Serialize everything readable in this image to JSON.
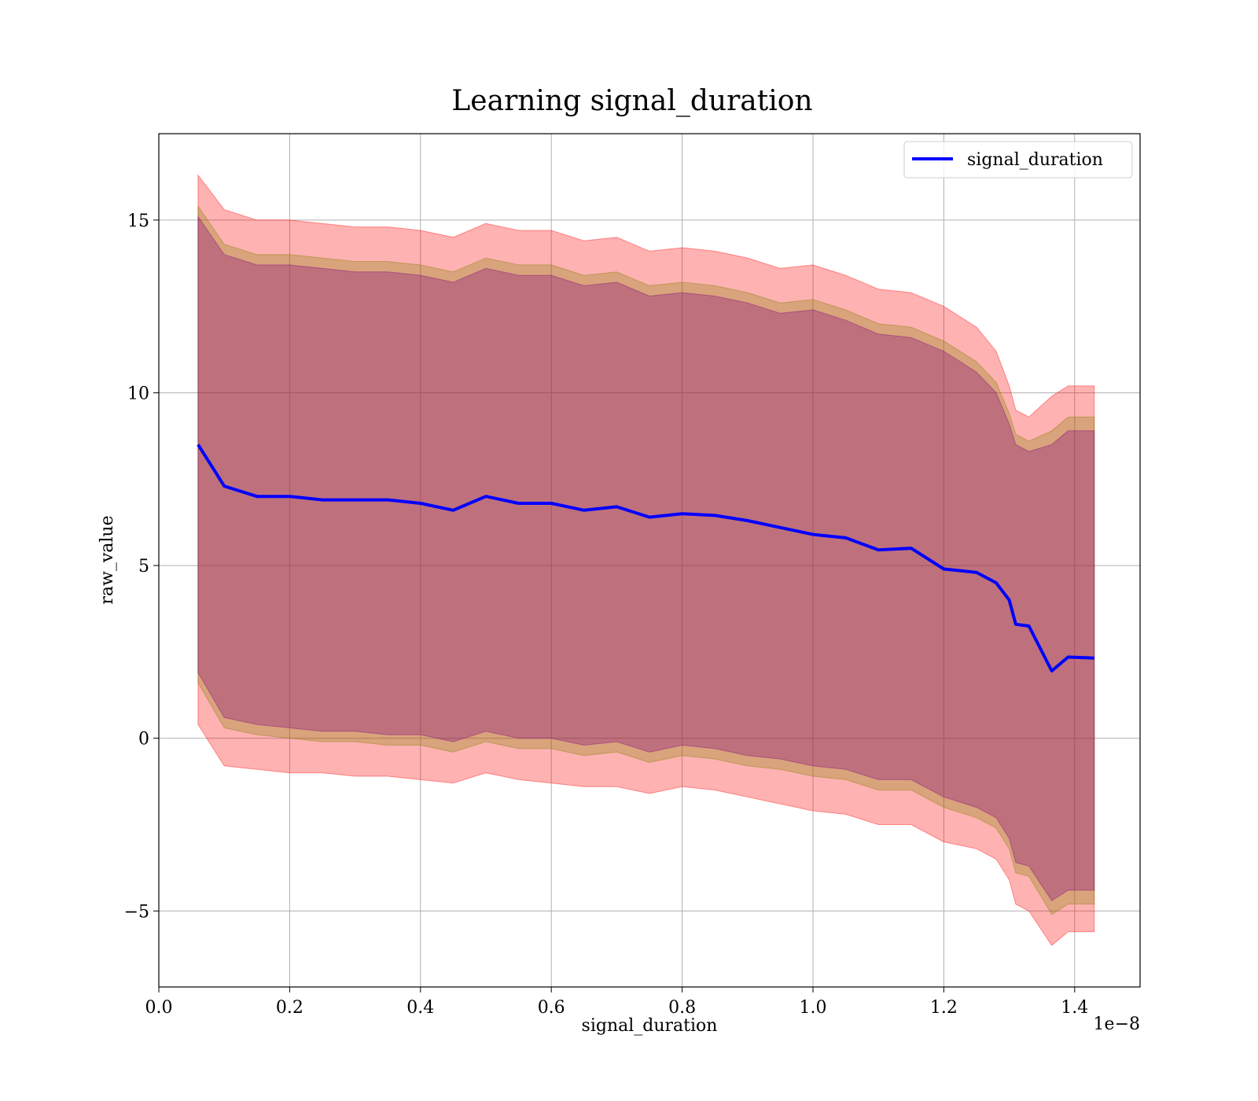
{
  "chart_data": {
    "type": "area",
    "title": "Learning signal_duration",
    "xlabel": "signal_duration",
    "ylabel": "raw_value",
    "x_offset_text": "1e−8",
    "x_scale": 1e-08,
    "xlim": [
      0.0,
      1.5
    ],
    "ylim": [
      -7.2,
      17.5
    ],
    "x_ticks": [
      0.0,
      0.2,
      0.4,
      0.6,
      0.8,
      1.0,
      1.2,
      1.4
    ],
    "x_tick_labels": [
      "0.0",
      "0.2",
      "0.4",
      "0.6",
      "0.8",
      "1.0",
      "1.2",
      "1.4"
    ],
    "y_ticks": [
      -5,
      0,
      5,
      10,
      15
    ],
    "y_tick_labels": [
      "−5",
      "0",
      "5",
      "10",
      "15"
    ],
    "grid": true,
    "legend": {
      "position": "top-right",
      "entries": [
        "signal_duration"
      ]
    },
    "x": [
      0.06,
      0.1,
      0.15,
      0.2,
      0.25,
      0.3,
      0.35,
      0.4,
      0.45,
      0.5,
      0.55,
      0.6,
      0.65,
      0.7,
      0.75,
      0.8,
      0.85,
      0.9,
      0.95,
      1.0,
      1.05,
      1.1,
      1.15,
      1.2,
      1.25,
      1.28,
      1.3,
      1.31,
      1.33,
      1.365,
      1.39,
      1.43
    ],
    "series": [
      {
        "name": "signal_duration",
        "color": "#0000ff",
        "values": [
          8.5,
          7.3,
          7.0,
          7.0,
          6.9,
          6.9,
          6.9,
          6.8,
          6.6,
          7.0,
          6.8,
          6.8,
          6.6,
          6.7,
          6.4,
          6.5,
          6.45,
          6.3,
          6.1,
          5.9,
          5.8,
          5.45,
          5.5,
          4.9,
          4.8,
          4.5,
          4.0,
          3.3,
          3.25,
          1.95,
          2.35,
          2.32
        ]
      }
    ],
    "bands": [
      {
        "color": "#ff0000",
        "opacity": 0.3,
        "upper": [
          16.3,
          15.3,
          15.0,
          15.0,
          14.9,
          14.8,
          14.8,
          14.7,
          14.5,
          14.9,
          14.7,
          14.7,
          14.4,
          14.5,
          14.1,
          14.2,
          14.1,
          13.9,
          13.6,
          13.7,
          13.4,
          13.0,
          12.9,
          12.5,
          11.9,
          11.2,
          10.2,
          9.5,
          9.3,
          9.9,
          10.2,
          10.2
        ],
        "lower": [
          0.4,
          -0.8,
          -0.9,
          -1.0,
          -1.0,
          -1.1,
          -1.1,
          -1.2,
          -1.3,
          -1.0,
          -1.2,
          -1.3,
          -1.4,
          -1.4,
          -1.6,
          -1.4,
          -1.5,
          -1.7,
          -1.9,
          -2.1,
          -2.2,
          -2.5,
          -2.5,
          -3.0,
          -3.2,
          -3.5,
          -4.1,
          -4.8,
          -5.0,
          -6.0,
          -5.6,
          -5.6
        ]
      },
      {
        "color": "#808000",
        "opacity": 0.3,
        "upper": [
          15.4,
          14.3,
          14.0,
          14.0,
          13.9,
          13.8,
          13.8,
          13.7,
          13.5,
          13.9,
          13.7,
          13.7,
          13.4,
          13.5,
          13.1,
          13.2,
          13.1,
          12.9,
          12.6,
          12.7,
          12.4,
          12.0,
          11.9,
          11.5,
          10.9,
          10.3,
          9.4,
          8.8,
          8.6,
          8.9,
          9.3,
          9.3
        ],
        "lower": [
          1.6,
          0.3,
          0.1,
          0.0,
          -0.1,
          -0.1,
          -0.2,
          -0.2,
          -0.4,
          -0.1,
          -0.3,
          -0.3,
          -0.5,
          -0.4,
          -0.7,
          -0.5,
          -0.6,
          -0.8,
          -0.9,
          -1.1,
          -1.2,
          -1.5,
          -1.5,
          -2.0,
          -2.3,
          -2.6,
          -3.2,
          -3.9,
          -4.0,
          -5.1,
          -4.8,
          -4.8
        ]
      },
      {
        "color": "#800080",
        "opacity": 0.3,
        "upper": [
          15.1,
          14.0,
          13.7,
          13.7,
          13.6,
          13.5,
          13.5,
          13.4,
          13.2,
          13.6,
          13.4,
          13.4,
          13.1,
          13.2,
          12.8,
          12.9,
          12.8,
          12.6,
          12.3,
          12.4,
          12.1,
          11.7,
          11.6,
          11.2,
          10.6,
          10.0,
          9.1,
          8.5,
          8.3,
          8.5,
          8.9,
          8.9
        ],
        "lower": [
          1.9,
          0.6,
          0.4,
          0.3,
          0.2,
          0.2,
          0.1,
          0.1,
          -0.1,
          0.2,
          0.0,
          0.0,
          -0.2,
          -0.1,
          -0.4,
          -0.2,
          -0.3,
          -0.5,
          -0.6,
          -0.8,
          -0.9,
          -1.2,
          -1.2,
          -1.7,
          -2.0,
          -2.3,
          -2.9,
          -3.6,
          -3.7,
          -4.7,
          -4.4,
          -4.4
        ]
      }
    ]
  }
}
